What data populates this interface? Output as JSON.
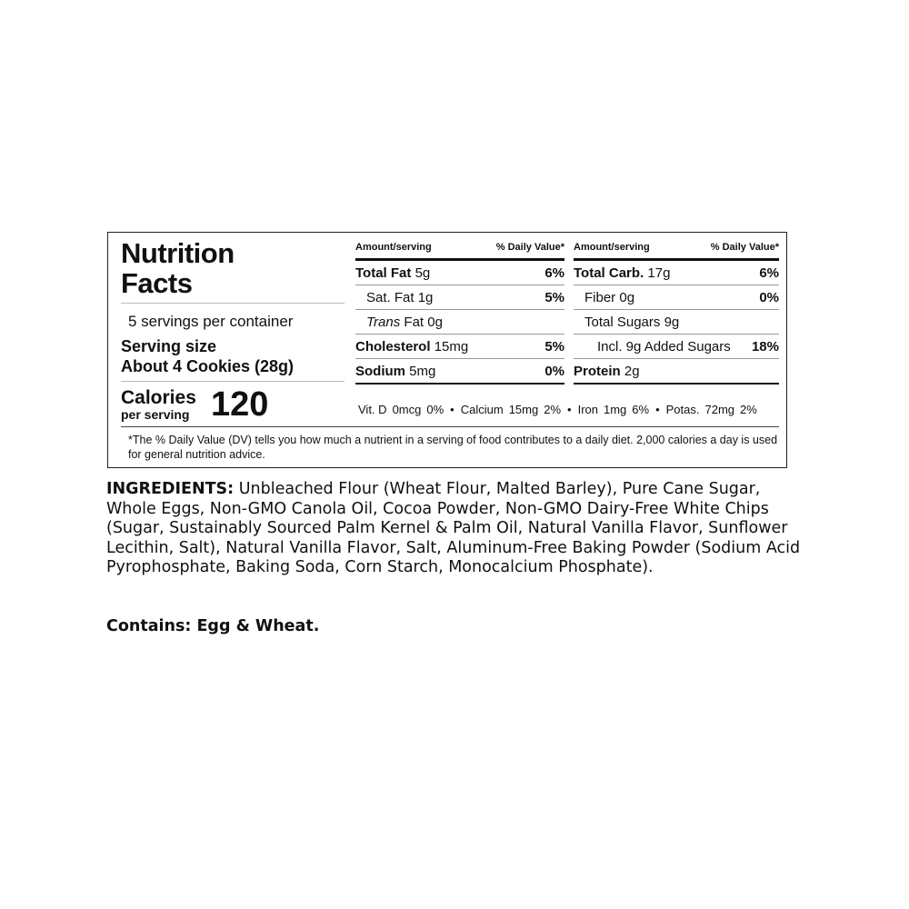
{
  "label": {
    "title": "Nutrition Facts",
    "servings": "5 servings per container",
    "serving_size_label": "Serving size",
    "serving_size": "About 4 Cookies (28g)",
    "calories_label": "Calories",
    "per_serving": "per serving",
    "calories": 120,
    "columns": [
      {
        "amount_header": "Amount/serving",
        "dv_header": "% Daily Value*",
        "rows": [
          {
            "name": "Total Fat",
            "amount": "5g",
            "dv": "6%"
          },
          {
            "name": "Sat. Fat",
            "amount": "1g",
            "dv": "5%"
          },
          {
            "name": "Trans",
            "name_rest": "Fat",
            "amount": "0g"
          },
          {
            "name": "Cholesterol",
            "amount": "15mg",
            "dv": "5%"
          },
          {
            "name": "Sodium",
            "amount": "5mg",
            "dv": "0%"
          }
        ]
      },
      {
        "amount_header": "Amount/serving",
        "dv_header": "% Daily Value*",
        "rows": [
          {
            "name": "Total Carb.",
            "amount": "17g",
            "dv": "6%"
          },
          {
            "name": "Fiber",
            "amount": "0g",
            "dv": "0%"
          },
          {
            "name": "Total Sugars",
            "amount": "9g"
          },
          {
            "name": "Incl. 9g Added Sugars",
            "dv": "18%"
          },
          {
            "name": "Protein",
            "amount": "2g"
          }
        ]
      }
    ],
    "vitamins": [
      {
        "name": "Vit. D",
        "amount": "0mcg",
        "dv": "0%"
      },
      {
        "name": "Calcium",
        "amount": "15mg",
        "dv": "2%"
      },
      {
        "name": "Iron",
        "amount": "1mg",
        "dv": "6%"
      },
      {
        "name": "Potas.",
        "amount": "72mg",
        "dv": "2%"
      }
    ],
    "footnote": "*The % Daily Value (DV) tells you how much a nutrient in a serving of food contributes to a daily diet. 2,000 calories a day is used for general nutrition advice."
  },
  "ingredients": {
    "label": "INGREDIENTS:",
    "text": "Unbleached Flour (Wheat Flour, Malted Barley), Pure Cane Sugar, Whole Eggs, Non-GMO Canola Oil, Cocoa Powder, Non-GMO Dairy-Free White Chips (Sugar, Sustainably Sourced Palm Kernel & Palm Oil, Natural Vanilla Flavor, Sunflower Lecithin, Salt), Natural Vanilla Flavor, Salt, Aluminum-Free Baking Powder (Sodium Acid Pyrophosphate, Baking Soda, Corn Starch, Monocalcium Phosphate)."
  },
  "contains": "Contains: Egg & Wheat."
}
